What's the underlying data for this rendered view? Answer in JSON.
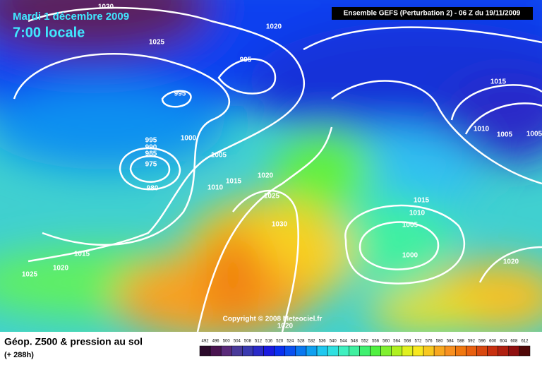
{
  "header": {
    "date": "Mardi 1 décembre 2009",
    "time": "7:00 locale",
    "model": "Ensemble GEFS (Perturbation 2)  -  06 Z du 19/11/2009"
  },
  "isobar_labels": [
    1030,
    1020,
    1025,
    995,
    995,
    1015,
    1010,
    1005,
    1005,
    995,
    990,
    985,
    975,
    980,
    1000,
    1005,
    1010,
    1015,
    1020,
    1025,
    1030,
    1015,
    1010,
    1005,
    1000,
    1015,
    1020,
    1025,
    1020,
    1020
  ],
  "copyright": "Copyright © 2008 Meteociel.fr",
  "footer": {
    "title": "Géop. Z500 & pression au sol",
    "lead": "(+ 288h)"
  },
  "scale": {
    "values": [
      492,
      496,
      500,
      504,
      508,
      512,
      516,
      520,
      524,
      528,
      532,
      536,
      540,
      544,
      548,
      552,
      556,
      560,
      564,
      568,
      572,
      576,
      580,
      584,
      588,
      592,
      596,
      600,
      604,
      608,
      612
    ],
    "colors": [
      "#2b0a2b",
      "#4a1450",
      "#5a2a7a",
      "#4a3a9a",
      "#3a3ab0",
      "#2a2ac8",
      "#1a1ae0",
      "#0a30f0",
      "#0a50f0",
      "#0a78f0",
      "#10a0f0",
      "#20c8f0",
      "#30e0e0",
      "#40f0c0",
      "#40f0a0",
      "#40f070",
      "#50f040",
      "#80f030",
      "#b0f020",
      "#e0f020",
      "#f8e820",
      "#f8c820",
      "#f8a820",
      "#f89020",
      "#f07810",
      "#e86010",
      "#d84810",
      "#c83010",
      "#b02010",
      "#901010",
      "#500808"
    ]
  }
}
